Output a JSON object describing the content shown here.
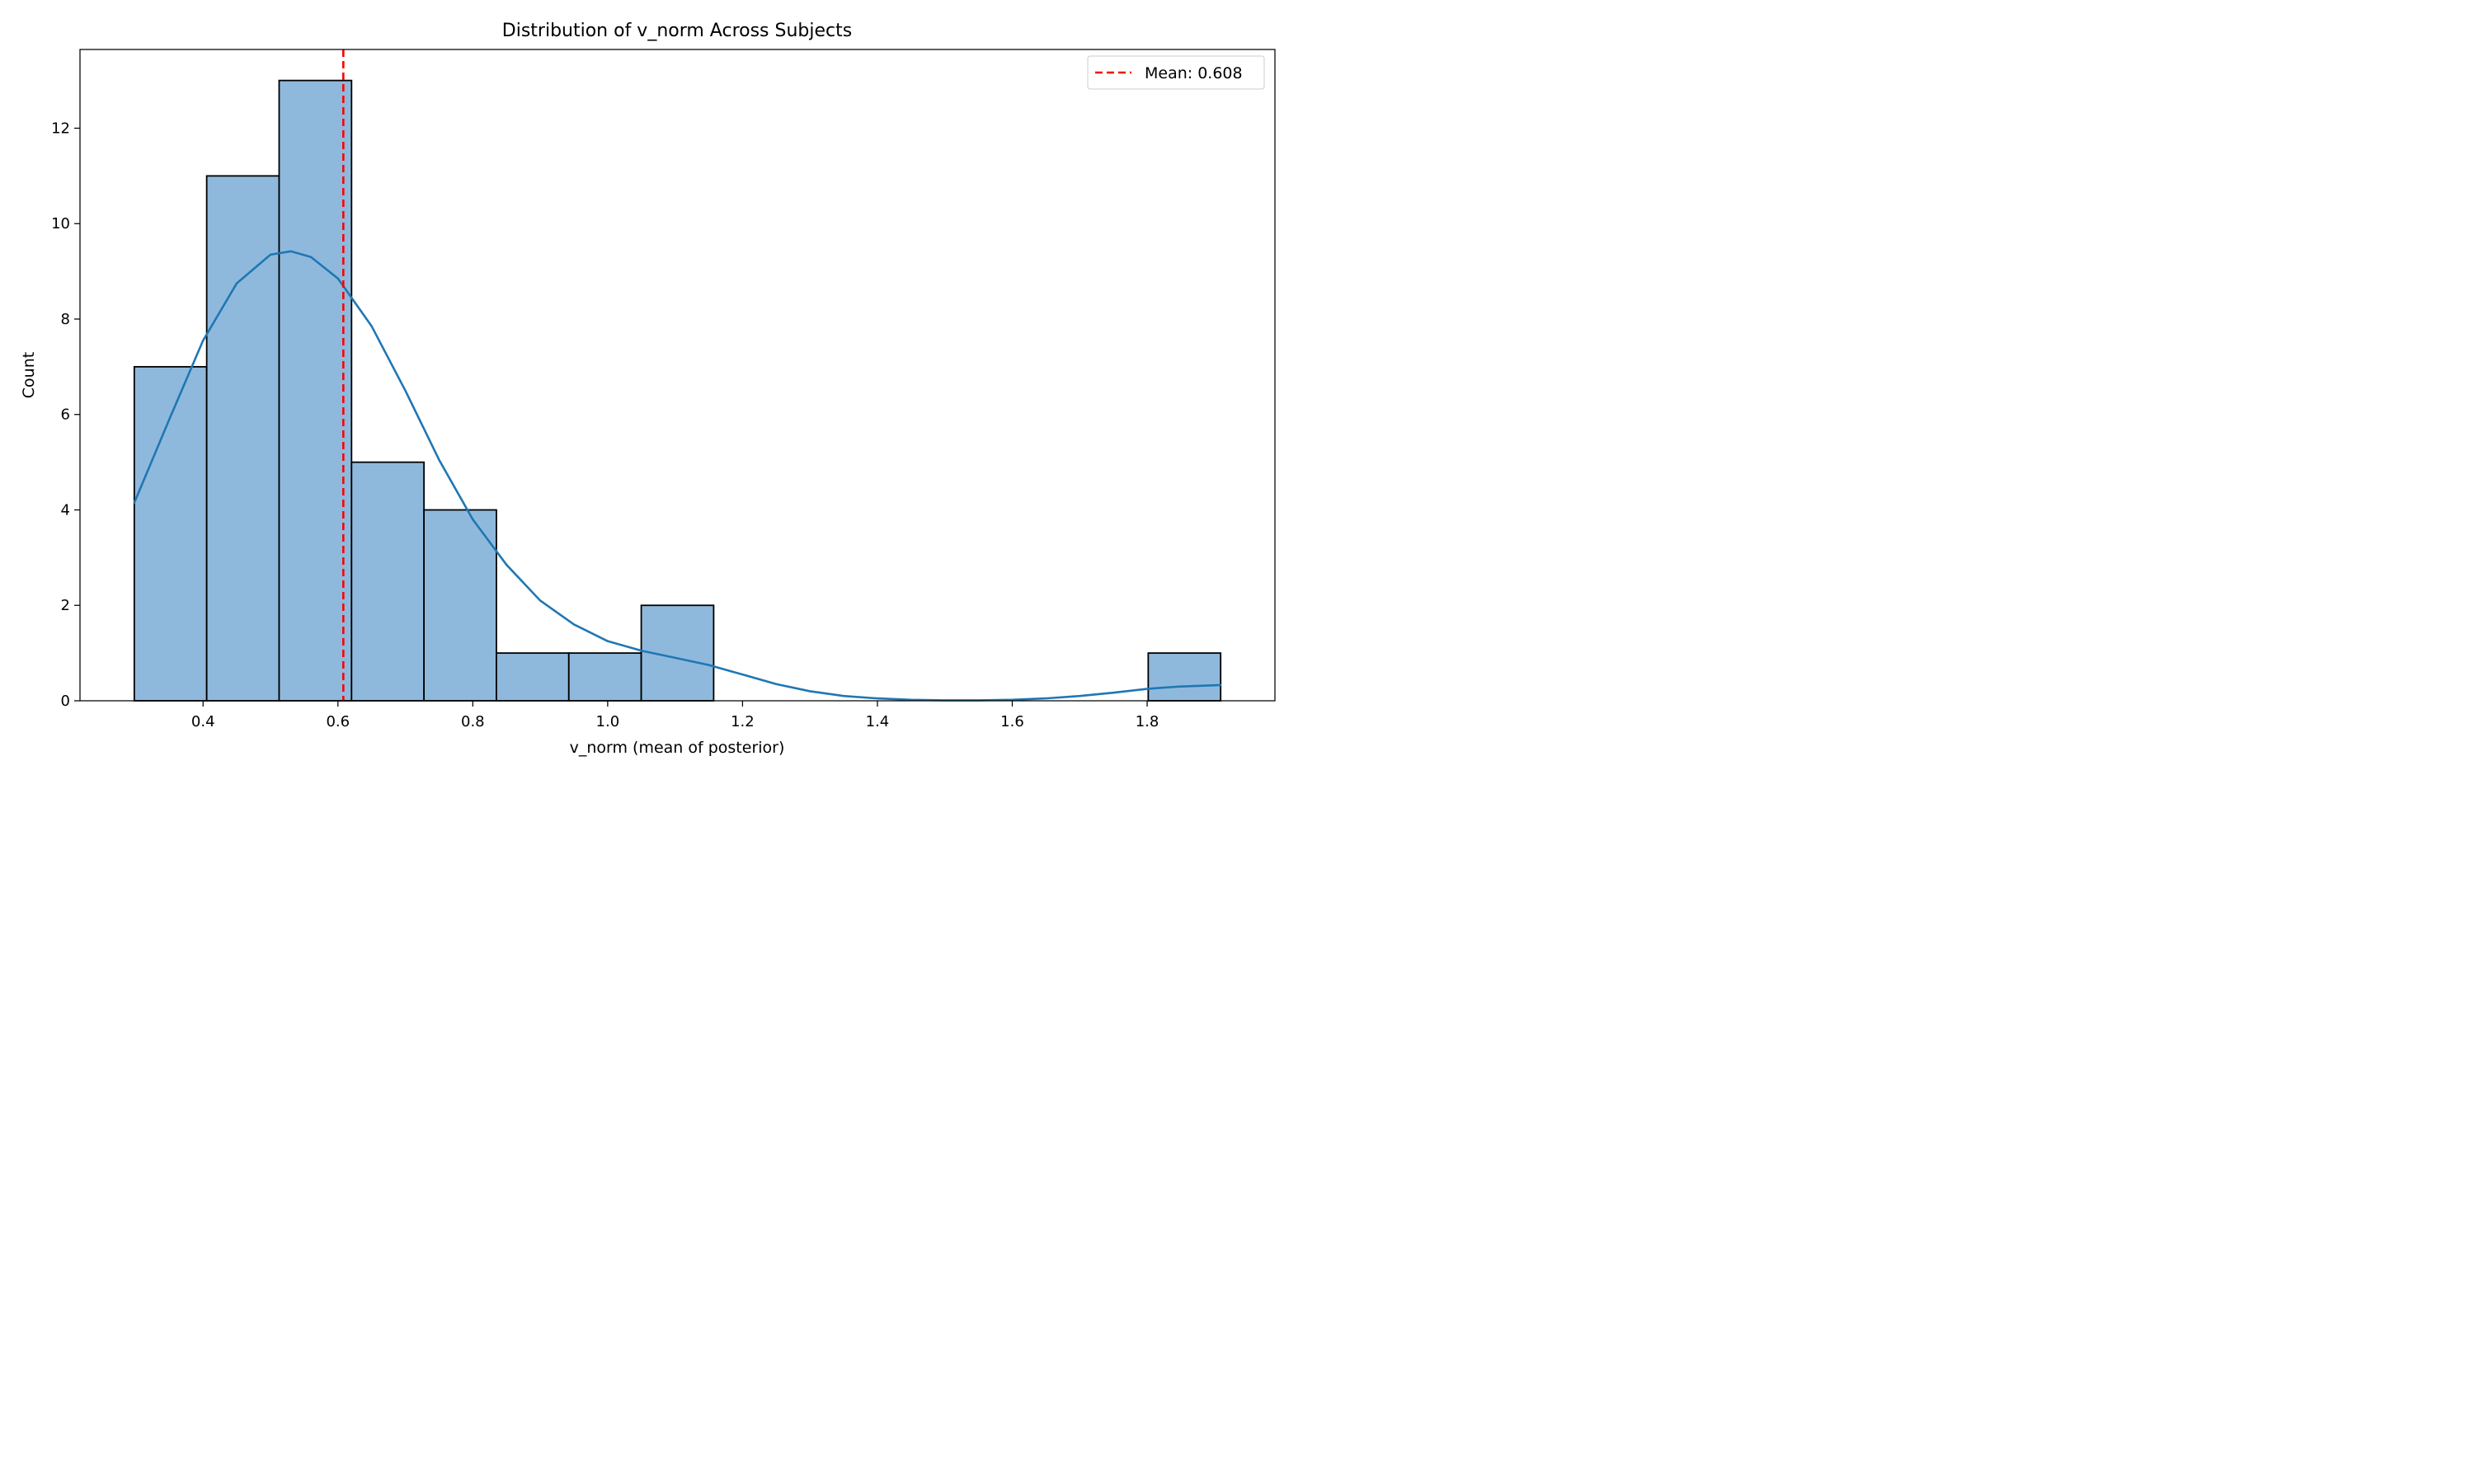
{
  "chart_data": {
    "type": "bar",
    "title": "Distribution of v_norm Across Subjects",
    "xlabel": "v_norm (mean of posterior)",
    "ylabel": "Count",
    "bin_edges": [
      0.298,
      0.4054,
      0.5128,
      0.6202,
      0.7276,
      0.835,
      0.9424,
      1.0498,
      1.1572,
      1.2646,
      1.372,
      1.4794,
      1.5868,
      1.6942,
      1.8016,
      1.909
    ],
    "counts": [
      7,
      11,
      13,
      5,
      4,
      1,
      1,
      2,
      0,
      0,
      0,
      0,
      0,
      0,
      1
    ],
    "bar_color": "#8fb9dc",
    "bar_edge_color": "#000000",
    "kde": {
      "color": "#1f77b4",
      "x": [
        0.298,
        0.35,
        0.4,
        0.45,
        0.5,
        0.53,
        0.56,
        0.6,
        0.65,
        0.7,
        0.75,
        0.8,
        0.85,
        0.9,
        0.95,
        1.0,
        1.05,
        1.1,
        1.15,
        1.2,
        1.25,
        1.3,
        1.35,
        1.4,
        1.45,
        1.5,
        1.55,
        1.6,
        1.65,
        1.7,
        1.75,
        1.8,
        1.85,
        1.909
      ],
      "y": [
        4.15,
        5.9,
        7.55,
        8.75,
        9.35,
        9.42,
        9.3,
        8.85,
        7.85,
        6.5,
        5.05,
        3.8,
        2.85,
        2.1,
        1.6,
        1.25,
        1.05,
        0.9,
        0.75,
        0.55,
        0.35,
        0.2,
        0.1,
        0.05,
        0.02,
        0.01,
        0.01,
        0.02,
        0.05,
        0.1,
        0.17,
        0.25,
        0.3,
        0.33
      ]
    },
    "mean_line": {
      "value": 0.608,
      "label": "Mean: 0.608",
      "color": "#ff0000",
      "style": "dashed"
    },
    "xlim": [
      0.2175,
      1.9895
    ],
    "ylim": [
      0,
      13.65
    ],
    "xticks": [
      0.4,
      0.6,
      0.8,
      1.0,
      1.2,
      1.4,
      1.6,
      1.8
    ],
    "xtick_labels": [
      "0.4",
      "0.6",
      "0.8",
      "1.0",
      "1.2",
      "1.4",
      "1.6",
      "1.8"
    ],
    "yticks": [
      0,
      2,
      4,
      6,
      8,
      10,
      12
    ],
    "ytick_labels": [
      "0",
      "2",
      "4",
      "6",
      "8",
      "10",
      "12"
    ],
    "grid": false,
    "legend": {
      "position": "top-right",
      "entries": [
        "Mean: 0.608"
      ]
    }
  }
}
